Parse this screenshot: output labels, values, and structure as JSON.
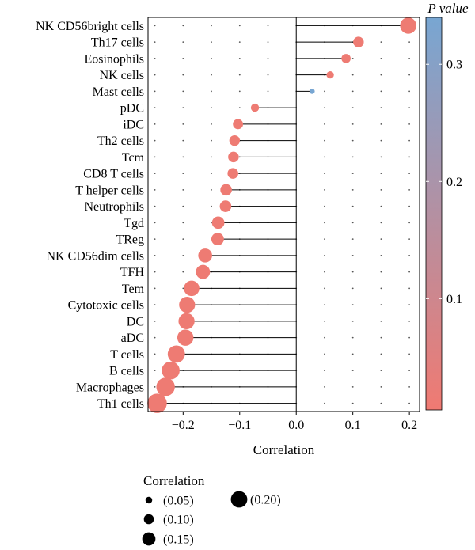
{
  "chart_data": {
    "type": "lollipop",
    "xlabel": "Correlation",
    "xlim": [
      -0.262,
      0.218
    ],
    "xticks": [
      -0.2,
      -0.1,
      0.0,
      0.1,
      0.2
    ],
    "xtick_labels": [
      "−0.2",
      "−0.1",
      "0.0",
      "0.1",
      "0.2"
    ],
    "categories": [
      "NK CD56bright cells",
      "Th17 cells",
      "Eosinophils",
      "NK cells",
      "Mast cells",
      "pDC",
      "iDC",
      "Th2 cells",
      "Tcm",
      "CD8 T cells",
      "T helper cells",
      "Neutrophils",
      "Tgd",
      "TReg",
      "NK CD56dim cells",
      "TFH",
      "Tem",
      "Cytotoxic cells",
      "DC",
      "aDC",
      "T cells",
      "B cells",
      "Macrophages",
      "Th1 cells"
    ],
    "values": [
      0.198,
      0.11,
      0.088,
      0.06,
      0.028,
      -0.073,
      -0.103,
      -0.109,
      -0.111,
      -0.112,
      -0.124,
      -0.125,
      -0.138,
      -0.139,
      -0.161,
      -0.165,
      -0.185,
      -0.193,
      -0.194,
      -0.196,
      -0.212,
      -0.222,
      -0.231,
      -0.246
    ],
    "p_values": [
      0.01,
      0.01,
      0.01,
      0.01,
      0.34,
      0.01,
      0.01,
      0.01,
      0.01,
      0.01,
      0.01,
      0.01,
      0.01,
      0.01,
      0.01,
      0.01,
      0.01,
      0.01,
      0.01,
      0.01,
      0.01,
      0.01,
      0.01,
      0.01
    ],
    "grid": true,
    "size_legend": {
      "title": "Correlation",
      "entries": [
        {
          "label": "(0.05)",
          "value": 0.05
        },
        {
          "label": "(0.10)",
          "value": 0.1
        },
        {
          "label": "(0.15)",
          "value": 0.15
        },
        {
          "label": "(0.20)",
          "value": 0.2
        }
      ]
    },
    "colorbar": {
      "title": "P value",
      "range": [
        0.005,
        0.34
      ],
      "ticks": [
        0.1,
        0.2,
        0.3
      ],
      "tick_labels": [
        "0.1",
        "0.2",
        "0.3"
      ],
      "color_low": "#f07a72",
      "color_high": "#78a6d2"
    },
    "colors": {
      "stem": "#000000",
      "grid_dots": "#555555"
    }
  }
}
